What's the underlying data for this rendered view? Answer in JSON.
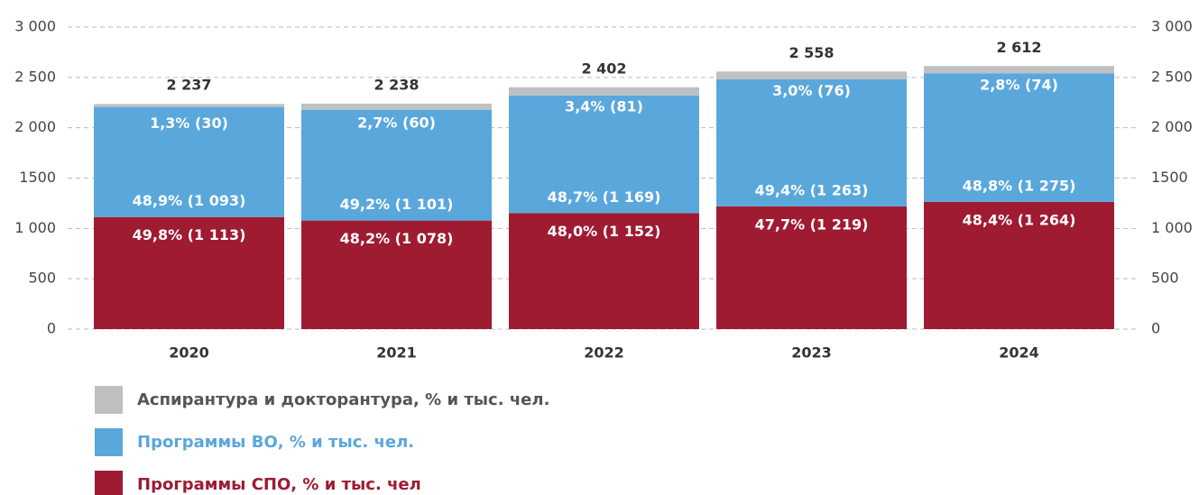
{
  "chart_data": {
    "type": "stacked_bar",
    "categories": [
      "2020",
      "2021",
      "2022",
      "2023",
      "2024"
    ],
    "series": [
      {
        "name": "Программы СПО, % и тыс. чел",
        "color": "#9e1b32",
        "values": [
          1113,
          1078,
          1152,
          1219,
          1264
        ],
        "value_labels": [
          "49,8% (1 113)",
          "48,2% (1 078)",
          "48,0% (1 152)",
          "47,7% (1 219)",
          "48,4% (1 264)"
        ]
      },
      {
        "name": "Программы ВО, % и тыс. чел.",
        "color": "#5aa7dc",
        "values": [
          1093,
          1101,
          1169,
          1263,
          1275
        ],
        "value_labels": [
          "48,9% (1 093)",
          "49,2% (1 101)",
          "48,7% (1 169)",
          "49,4% (1 263)",
          "48,8% (1 275)"
        ]
      },
      {
        "name": "Аспирантура и докторантура, % и тыс. чел.",
        "color": "#bfc0c2",
        "values": [
          30,
          60,
          81,
          76,
          74
        ],
        "value_labels": [
          "1,3% (30)",
          "2,7% (60)",
          "3,4% (81)",
          "3,0% (76)",
          "2,8% (74)"
        ]
      }
    ],
    "totals": [
      {
        "value": 2237,
        "label": "2 237"
      },
      {
        "value": 2238,
        "label": "2 238"
      },
      {
        "value": 2402,
        "label": "2 402"
      },
      {
        "value": 2558,
        "label": "2 558"
      },
      {
        "value": 2612,
        "label": "2 612"
      }
    ],
    "ylim": [
      0,
      3000
    ],
    "yticks": [
      0,
      500,
      {
        "value": 1000,
        "label": "1 000"
      },
      1500,
      {
        "value": 2000,
        "label": "2 000"
      },
      {
        "value": 2500,
        "label": "2 500"
      },
      {
        "value": 3000,
        "label": "3 000"
      }
    ],
    "y2lim": [
      0,
      3000
    ],
    "y2ticks": [
      0,
      500,
      {
        "value": 1000,
        "label": "1 000"
      },
      1500,
      {
        "value": 2000,
        "label": "2 000"
      },
      {
        "value": 2500,
        "label": "2 500"
      },
      {
        "value": 3000,
        "label": "3 000"
      }
    ],
    "grid": true
  }
}
